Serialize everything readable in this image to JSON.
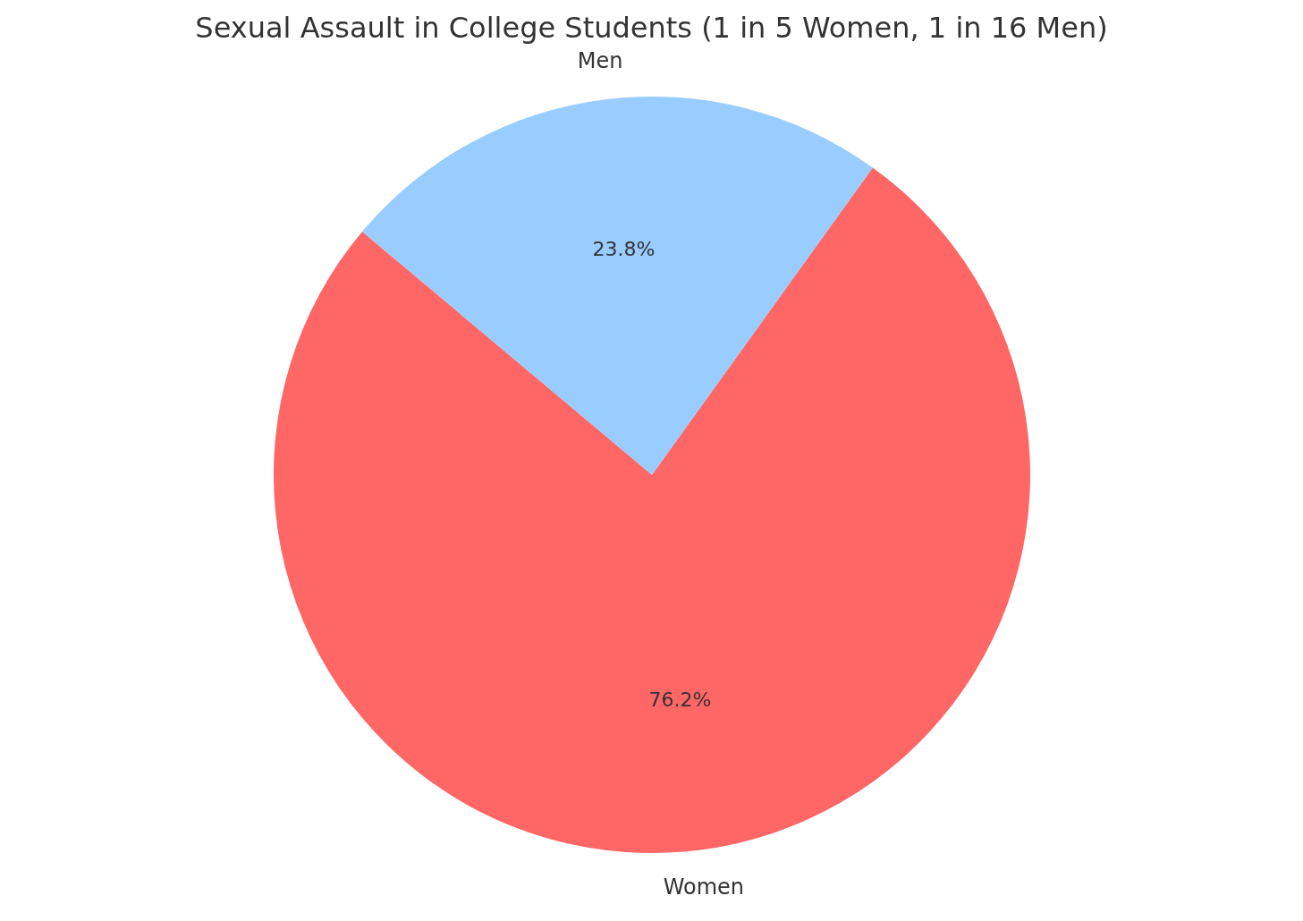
{
  "chart_data": {
    "type": "pie",
    "title": "Sexual Assault in College Students (1 in 5 Women, 1 in 16 Men)",
    "categories": [
      "Women",
      "Men"
    ],
    "values": [
      76.2,
      23.8
    ],
    "colors": [
      "#ff6666",
      "#99ccff"
    ],
    "value_labels": [
      "76.2%",
      "23.8%"
    ]
  }
}
